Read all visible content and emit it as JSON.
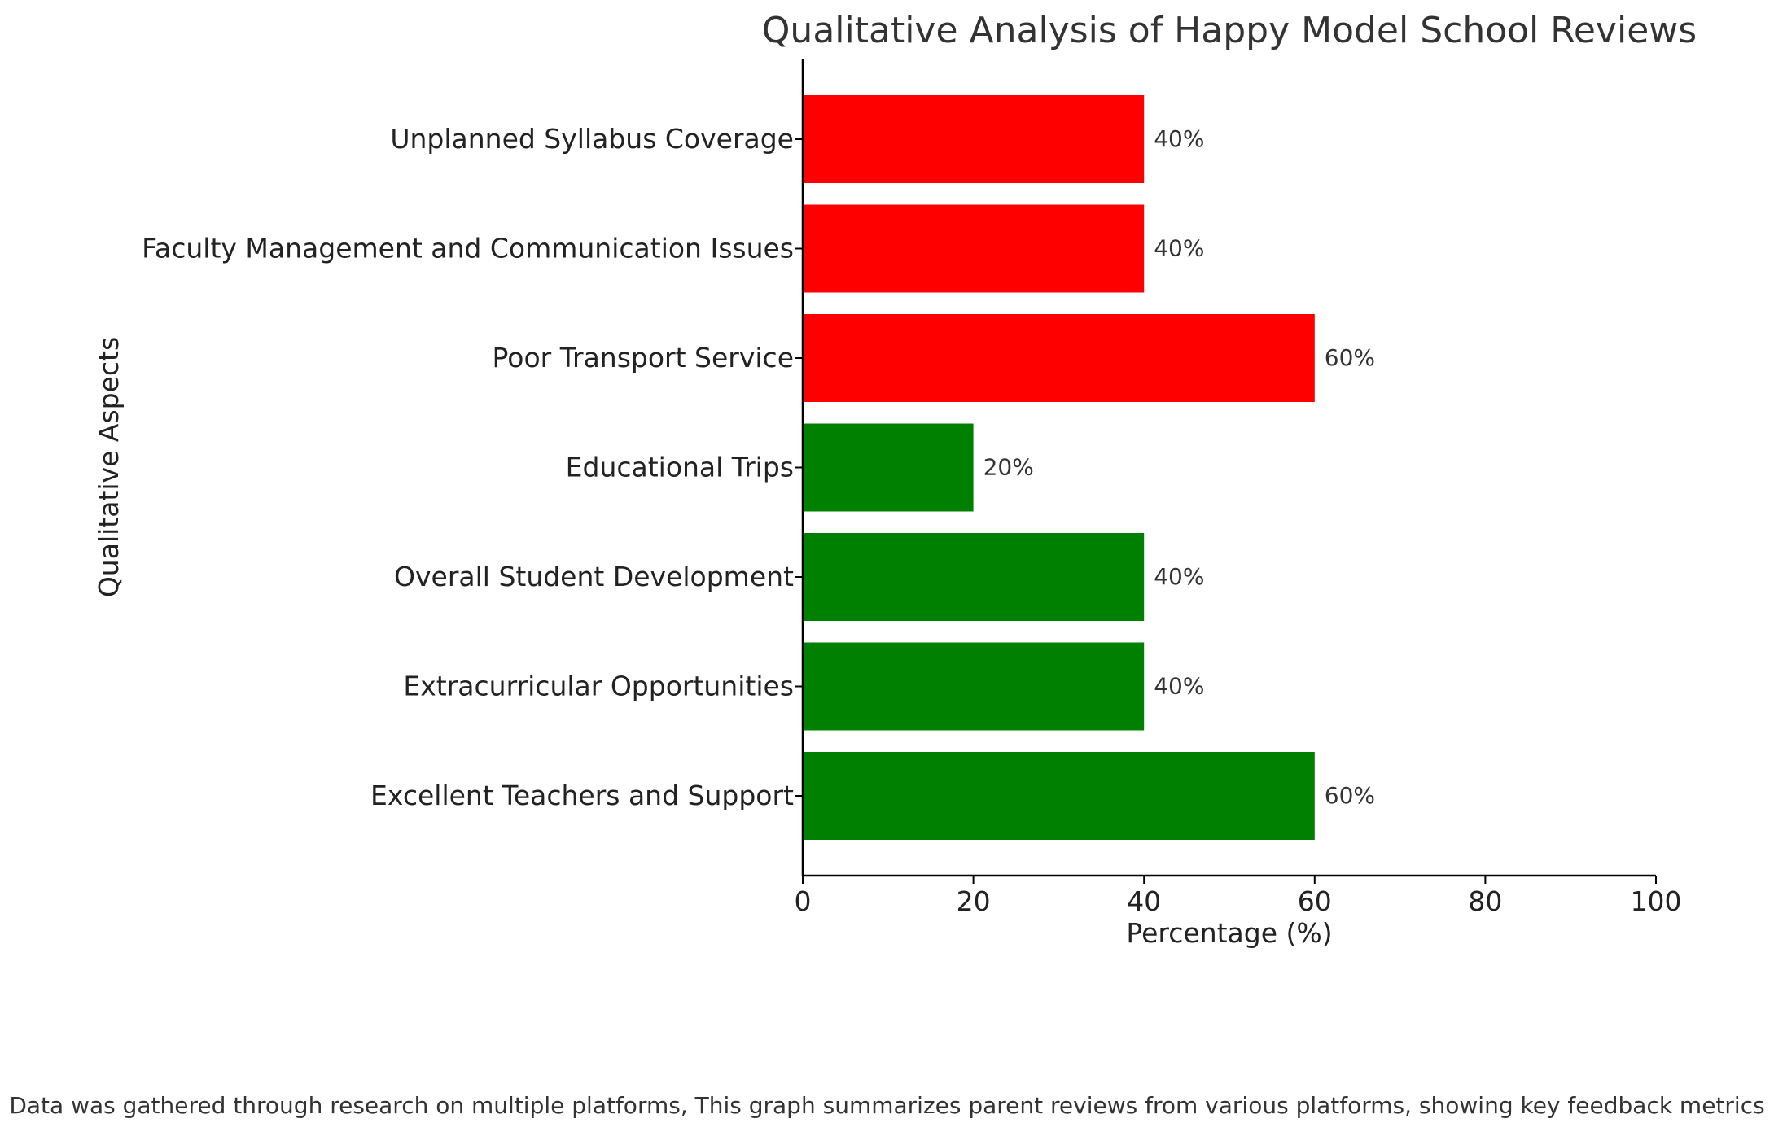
{
  "chart_data": {
    "type": "bar",
    "orientation": "horizontal",
    "title": "Qualitative Analysis of Happy Model School Reviews",
    "xlabel": "Percentage (%)",
    "ylabel": "Qualitative Aspects",
    "xlim": [
      0,
      100
    ],
    "xticks": [
      0,
      20,
      40,
      60,
      80,
      100
    ],
    "grid": false,
    "categories": [
      "Excellent Teachers and Support",
      "Extracurricular Opportunities",
      "Overall Student Development",
      "Educational Trips",
      "Poor Transport Service",
      "Faculty Management and Communication Issues",
      "Unplanned Syllabus Coverage"
    ],
    "values": [
      60,
      40,
      40,
      20,
      60,
      40,
      40
    ],
    "data_labels": [
      "60%",
      "40%",
      "40%",
      "20%",
      "60%",
      "40%",
      "40%"
    ],
    "bar_colors": [
      "#008000",
      "#008000",
      "#008000",
      "#008000",
      "#ff0000",
      "#ff0000",
      "#ff0000"
    ]
  },
  "footnote": "Data was gathered through research on multiple platforms, This graph summarizes parent reviews from various platforms, showing key feedback metrics"
}
